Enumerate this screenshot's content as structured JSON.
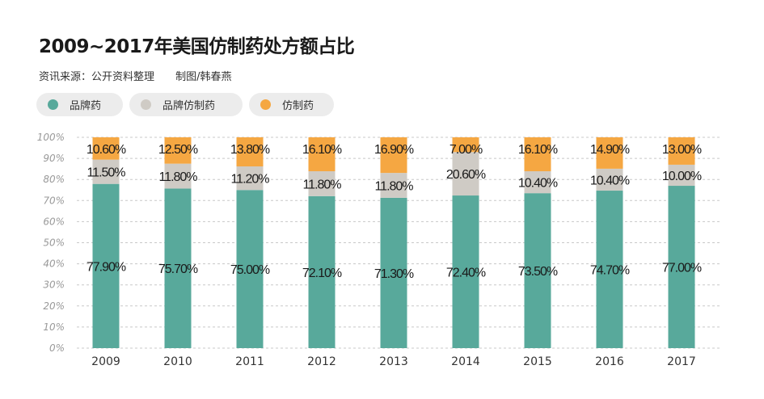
{
  "chart_data": {
    "type": "bar",
    "stacked": true,
    "title": "2009~2017年美国仿制药处方额占比",
    "subtitle": [
      "资讯来源：公开资料整理",
      "制图/韩春燕"
    ],
    "categories": [
      "2009",
      "2010",
      "2011",
      "2012",
      "2013",
      "2014",
      "2015",
      "2016",
      "2017"
    ],
    "series": [
      {
        "name": "品牌药",
        "color": "#58a99b",
        "values": [
          77.9,
          75.7,
          75.0,
          72.1,
          71.3,
          72.4,
          73.5,
          74.7,
          77.0
        ],
        "labels": [
          "77.90%",
          "75.70%",
          "75.00%",
          "72.10%",
          "71.30%",
          "72.40%",
          "73.50%",
          "74.70%",
          "77.00%"
        ]
      },
      {
        "name": "品牌仿制药",
        "color": "#cfcbc5",
        "values": [
          11.5,
          11.8,
          11.2,
          11.8,
          11.8,
          20.6,
          10.4,
          10.4,
          10.0
        ],
        "labels": [
          "11.50%",
          "11.80%",
          "11.20%",
          "11.80%",
          "11.80%",
          "20.60%",
          "10.40%",
          "10.40%",
          "10.00%"
        ]
      },
      {
        "name": "仿制药",
        "color": "#f5a742",
        "values": [
          10.6,
          12.5,
          13.8,
          16.1,
          16.9,
          7.0,
          16.1,
          14.9,
          13.0
        ],
        "labels": [
          "10.60%",
          "12.50%",
          "13.80%",
          "16.10%",
          "16.90%",
          "7.00%",
          "16.10%",
          "14.90%",
          "13.00%"
        ]
      }
    ],
    "yticks": [
      "0%",
      "10%",
      "20%",
      "30%",
      "40%",
      "50%",
      "60%",
      "70%",
      "80%",
      "90%",
      "100%"
    ],
    "ylim": [
      0,
      100
    ],
    "grid": true,
    "legend": "top-left"
  }
}
